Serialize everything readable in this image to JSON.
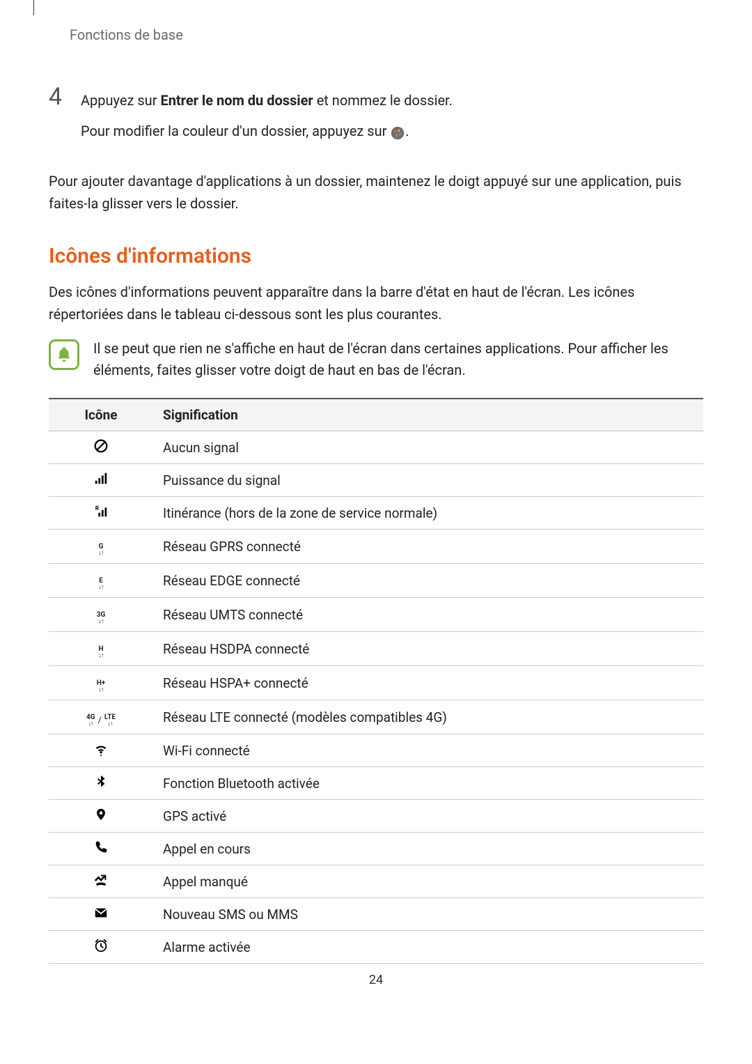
{
  "breadcrumb": "Fonctions de base",
  "step": {
    "number": "4",
    "line_prefix": "Appuyez sur ",
    "line_bold": "Entrer le nom du dossier",
    "line_suffix": " et nommez le dossier.",
    "subline_prefix": "Pour modifier la couleur d'un dossier, appuyez sur ",
    "subline_suffix": "."
  },
  "paragraph": "Pour ajouter davantage d'applications à un dossier, maintenez le doigt appuyé sur une application, puis faites-la glisser vers le dossier.",
  "section_title": "Icônes d'informations",
  "section_title_color": "#e85c1a",
  "intro": "Des icônes d'informations peuvent apparaître dans la barre d'état en haut de l'écran. Les icônes répertoriées dans le tableau ci-dessous sont les plus courantes.",
  "callout_icon_color": "#7cb342",
  "callout": "Il se peut que rien ne s'affiche en haut de l'écran dans certaines applications. Pour afficher les éléments, faites glisser votre doigt de haut en bas de l'écran.",
  "table": {
    "header_icon": "Icône",
    "header_meaning": "Signification",
    "rows": [
      {
        "icon": "no-signal",
        "meaning": "Aucun signal"
      },
      {
        "icon": "signal-bars",
        "meaning": "Puissance du signal"
      },
      {
        "icon": "roaming",
        "meaning": "Itinérance (hors de la zone de service normale)"
      },
      {
        "icon": "net-G",
        "label": "G",
        "meaning": "Réseau GPRS connecté"
      },
      {
        "icon": "net-E",
        "label": "E",
        "meaning": "Réseau EDGE connecté"
      },
      {
        "icon": "net-3G",
        "label": "3G",
        "meaning": "Réseau UMTS connecté"
      },
      {
        "icon": "net-H",
        "label": "H",
        "meaning": "Réseau HSDPA connecté"
      },
      {
        "icon": "net-Hplus",
        "label": "H+",
        "meaning": "Réseau HSPA+ connecté"
      },
      {
        "icon": "net-4G-LTE",
        "label1": "4G",
        "label2": "LTE",
        "meaning": "Réseau LTE connecté (modèles compatibles 4G)"
      },
      {
        "icon": "wifi",
        "meaning": "Wi-Fi connecté"
      },
      {
        "icon": "bluetooth",
        "meaning": "Fonction Bluetooth activée"
      },
      {
        "icon": "gps",
        "meaning": "GPS activé"
      },
      {
        "icon": "call",
        "meaning": "Appel en cours"
      },
      {
        "icon": "missed-call",
        "meaning": "Appel manqué"
      },
      {
        "icon": "sms",
        "meaning": "Nouveau SMS ou MMS"
      },
      {
        "icon": "alarm",
        "meaning": "Alarme activée"
      }
    ]
  },
  "page_number": "24"
}
